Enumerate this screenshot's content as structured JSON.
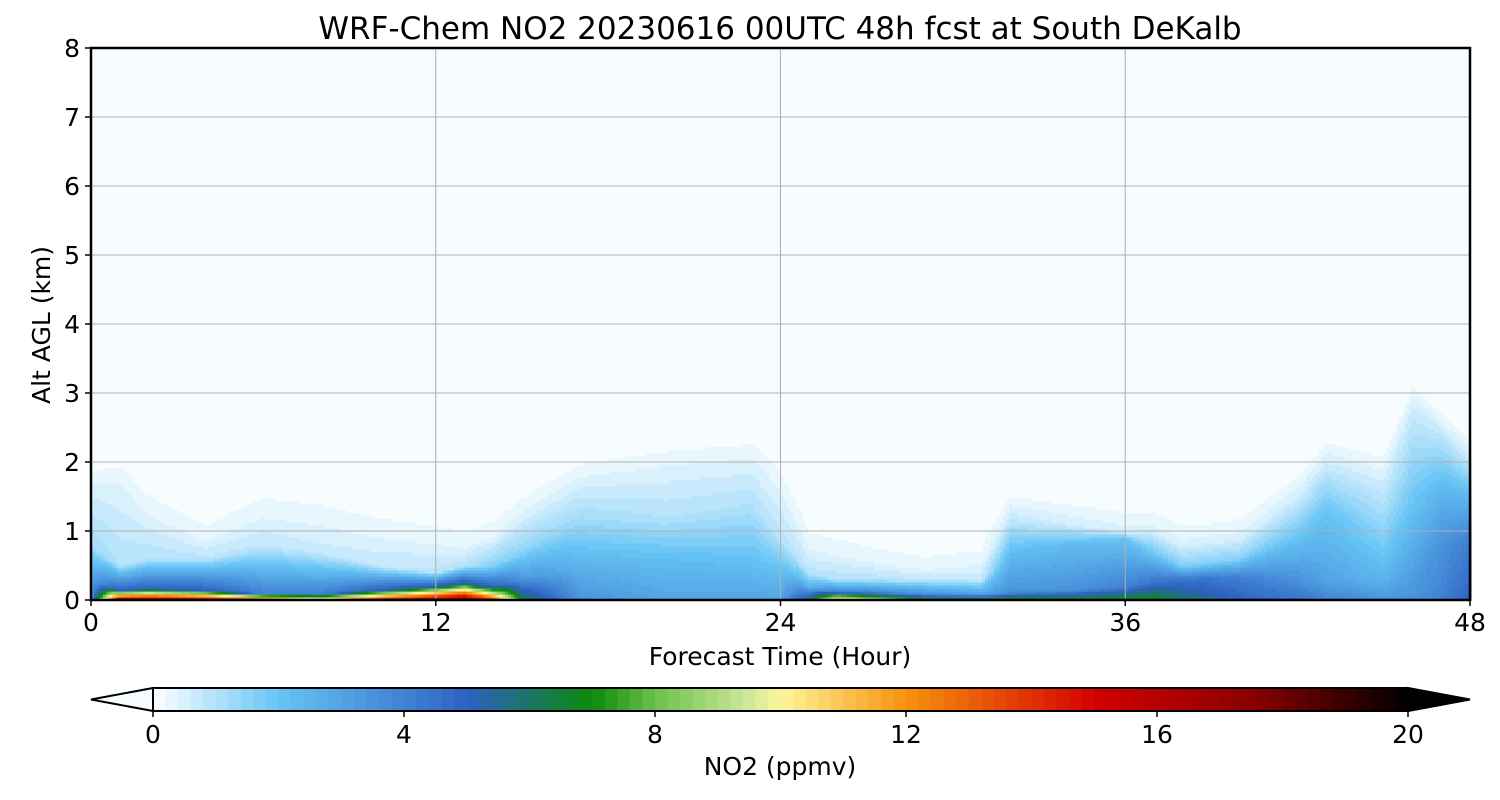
{
  "chart_data": {
    "type": "heatmap",
    "title": "WRF-Chem NO2  20230616 00UTC 48h fcst at South DeKalb",
    "xlabel": "Forecast Time (Hour)",
    "ylabel": "Alt AGL (km)",
    "xlim": [
      0,
      48
    ],
    "ylim": [
      0,
      8
    ],
    "xticks": [
      0,
      12,
      24,
      36,
      48
    ],
    "yticks": [
      0,
      1,
      2,
      3,
      4,
      5,
      6,
      7,
      8
    ],
    "grid": true,
    "colorbar": {
      "label": "NO2  (ppmv)",
      "range": [
        0,
        20
      ],
      "ticks": [
        0,
        4,
        8,
        12,
        16,
        20
      ],
      "extend": "both",
      "orientation": "horizontal",
      "placement": "bottom",
      "levels": 100,
      "colormap": [
        {
          "v": 0,
          "c": "#ffffff"
        },
        {
          "v": 2,
          "c": "#66c4f5"
        },
        {
          "v": 5,
          "c": "#2d61c2"
        },
        {
          "v": 7,
          "c": "#0a8a0a"
        },
        {
          "v": 8,
          "c": "#6cc04a"
        },
        {
          "v": 9.5,
          "c": "#cfe89b"
        },
        {
          "v": 10,
          "c": "#fff69a"
        },
        {
          "v": 12,
          "c": "#f7920c"
        },
        {
          "v": 15,
          "c": "#d40000"
        },
        {
          "v": 17.5,
          "c": "#8a0000"
        },
        {
          "v": 20,
          "c": "#000000"
        }
      ]
    },
    "vertical_profiles": [
      {
        "t": 0,
        "surface": 3.5,
        "layers": [
          {
            "top": 0.3,
            "v": 3
          },
          {
            "top": 0.8,
            "v": 1.2
          },
          {
            "top": 1.6,
            "v": 0.5
          }
        ]
      },
      {
        "t": 1,
        "surface": 17,
        "layers": [
          {
            "top": 0.15,
            "v": 5
          },
          {
            "top": 0.5,
            "v": 1.0
          },
          {
            "top": 1.7,
            "v": 0.4
          }
        ]
      },
      {
        "t": 2,
        "surface": 17,
        "layers": [
          {
            "top": 0.17,
            "v": 5
          },
          {
            "top": 0.6,
            "v": 1.0
          },
          {
            "top": 1.3,
            "v": 0.35
          }
        ]
      },
      {
        "t": 4,
        "surface": 16,
        "layers": [
          {
            "top": 0.15,
            "v": 5
          },
          {
            "top": 0.6,
            "v": 0.9
          },
          {
            "top": 0.9,
            "v": 0.3
          }
        ]
      },
      {
        "t": 6,
        "surface": 14,
        "layers": [
          {
            "top": 0.1,
            "v": 4
          },
          {
            "top": 0.8,
            "v": 0.8
          },
          {
            "top": 1.3,
            "v": 0.3
          }
        ]
      },
      {
        "t": 8,
        "surface": 11,
        "layers": [
          {
            "top": 0.1,
            "v": 4
          },
          {
            "top": 0.7,
            "v": 0.7
          },
          {
            "top": 1.2,
            "v": 0.3
          }
        ]
      },
      {
        "t": 10,
        "surface": 15,
        "layers": [
          {
            "top": 0.15,
            "v": 5
          },
          {
            "top": 0.5,
            "v": 0.8
          },
          {
            "top": 1.0,
            "v": 0.3
          }
        ]
      },
      {
        "t": 12,
        "surface": 17,
        "layers": [
          {
            "top": 0.2,
            "v": 5.5
          },
          {
            "top": 0.4,
            "v": 0.9
          },
          {
            "top": 0.9,
            "v": 0.3
          }
        ]
      },
      {
        "t": 13,
        "surface": 18,
        "layers": [
          {
            "top": 0.25,
            "v": 5.5
          },
          {
            "top": 0.5,
            "v": 1.0
          },
          {
            "top": 0.8,
            "v": 0.3
          }
        ]
      },
      {
        "t": 14,
        "surface": 14,
        "layers": [
          {
            "top": 0.2,
            "v": 5
          },
          {
            "top": 0.5,
            "v": 1.6
          },
          {
            "top": 0.9,
            "v": 0.4
          }
        ]
      },
      {
        "t": 15,
        "surface": 6.5,
        "layers": [
          {
            "top": 0.3,
            "v": 3.5
          },
          {
            "top": 0.7,
            "v": 1.5
          },
          {
            "top": 1.2,
            "v": 0.5
          }
        ]
      },
      {
        "t": 17,
        "surface": 3.5,
        "layers": [
          {
            "top": 0.5,
            "v": 2.5
          },
          {
            "top": 1.2,
            "v": 1.2
          },
          {
            "top": 1.7,
            "v": 0.5
          }
        ]
      },
      {
        "t": 20,
        "surface": 3.0,
        "layers": [
          {
            "top": 0.6,
            "v": 2.2
          },
          {
            "top": 1.2,
            "v": 1.0
          },
          {
            "top": 1.9,
            "v": 0.45
          }
        ]
      },
      {
        "t": 23,
        "surface": 3.0,
        "layers": [
          {
            "top": 0.5,
            "v": 2.2
          },
          {
            "top": 1.4,
            "v": 1.0
          },
          {
            "top": 2.0,
            "v": 0.45
          }
        ]
      },
      {
        "t": 24,
        "surface": 3.0,
        "layers": [
          {
            "top": 0.5,
            "v": 2.0
          },
          {
            "top": 0.9,
            "v": 0.9
          },
          {
            "top": 1.6,
            "v": 0.4
          }
        ]
      },
      {
        "t": 25,
        "surface": 6.0,
        "layers": [
          {
            "top": 0.2,
            "v": 2.5
          },
          {
            "top": 0.4,
            "v": 0.9
          },
          {
            "top": 0.8,
            "v": 0.3
          }
        ]
      },
      {
        "t": 26,
        "surface": 12,
        "layers": [
          {
            "top": 0.12,
            "v": 4
          },
          {
            "top": 0.3,
            "v": 1.0
          },
          {
            "top": 0.7,
            "v": 0.3
          }
        ]
      },
      {
        "t": 27,
        "surface": 10,
        "layers": [
          {
            "top": 0.12,
            "v": 4
          },
          {
            "top": 0.3,
            "v": 1.0
          },
          {
            "top": 0.6,
            "v": 0.3
          }
        ]
      },
      {
        "t": 29,
        "surface": 7,
        "layers": [
          {
            "top": 0.1,
            "v": 3.5
          },
          {
            "top": 0.3,
            "v": 0.8
          },
          {
            "top": 0.5,
            "v": 0.25
          }
        ]
      },
      {
        "t": 31,
        "surface": 6.5,
        "layers": [
          {
            "top": 0.1,
            "v": 3.0
          },
          {
            "top": 0.3,
            "v": 0.8
          },
          {
            "top": 0.6,
            "v": 0.25
          }
        ]
      },
      {
        "t": 32,
        "surface": 7.5,
        "layers": [
          {
            "top": 0.12,
            "v": 3.5
          },
          {
            "top": 0.7,
            "v": 2.2
          },
          {
            "top": 1.2,
            "v": 0.7
          }
        ]
      },
      {
        "t": 34,
        "surface": 7.0,
        "layers": [
          {
            "top": 0.15,
            "v": 3.5
          },
          {
            "top": 0.8,
            "v": 2.3
          },
          {
            "top": 1.1,
            "v": 0.6
          }
        ]
      },
      {
        "t": 36,
        "surface": 7.0,
        "layers": [
          {
            "top": 0.2,
            "v": 4.0
          },
          {
            "top": 0.9,
            "v": 2.0
          },
          {
            "top": 1.0,
            "v": 0.5
          }
        ]
      },
      {
        "t": 37,
        "surface": 7.0,
        "layers": [
          {
            "top": 0.25,
            "v": 4.5
          },
          {
            "top": 0.7,
            "v": 1.8
          },
          {
            "top": 1.0,
            "v": 0.5
          }
        ]
      },
      {
        "t": 38,
        "surface": 6.0,
        "layers": [
          {
            "top": 0.3,
            "v": 4.5
          },
          {
            "top": 0.5,
            "v": 1.6
          },
          {
            "top": 0.8,
            "v": 0.5
          }
        ]
      },
      {
        "t": 40,
        "surface": 5.0,
        "layers": [
          {
            "top": 0.35,
            "v": 4.0
          },
          {
            "top": 0.6,
            "v": 1.6
          },
          {
            "top": 0.9,
            "v": 0.5
          }
        ]
      },
      {
        "t": 42,
        "surface": 4.5,
        "layers": [
          {
            "top": 0.3,
            "v": 3.5
          },
          {
            "top": 1.0,
            "v": 1.8
          },
          {
            "top": 1.5,
            "v": 0.6
          }
        ]
      },
      {
        "t": 43,
        "surface": 4.0,
        "layers": [
          {
            "top": 0.3,
            "v": 3.0
          },
          {
            "top": 1.3,
            "v": 2.0
          },
          {
            "top": 2.0,
            "v": 0.6
          }
        ]
      },
      {
        "t": 45,
        "surface": 3.5,
        "layers": [
          {
            "top": 0.3,
            "v": 2.5
          },
          {
            "top": 1.0,
            "v": 1.5
          },
          {
            "top": 1.8,
            "v": 0.5
          }
        ]
      },
      {
        "t": 46,
        "surface": 3.5,
        "layers": [
          {
            "top": 0.5,
            "v": 3.0
          },
          {
            "top": 1.4,
            "v": 2.0
          },
          {
            "top": 2.8,
            "v": 0.6
          }
        ]
      },
      {
        "t": 47,
        "surface": 4.0,
        "layers": [
          {
            "top": 0.8,
            "v": 3.5
          },
          {
            "top": 1.6,
            "v": 2.4
          },
          {
            "top": 2.4,
            "v": 0.8
          }
        ]
      },
      {
        "t": 48,
        "surface": 5.0,
        "layers": [
          {
            "top": 0.9,
            "v": 4.0
          },
          {
            "top": 1.4,
            "v": 2.6
          },
          {
            "top": 2.0,
            "v": 0.8
          }
        ]
      }
    ]
  }
}
